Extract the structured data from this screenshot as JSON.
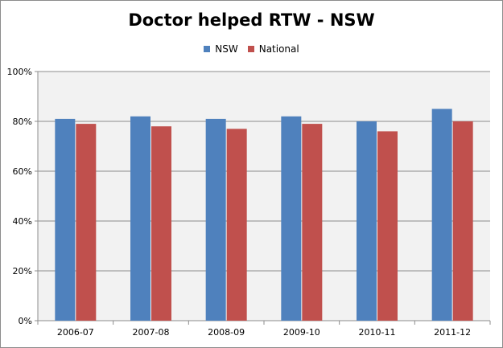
{
  "chart_data": {
    "type": "bar",
    "title": "Doctor helped RTW - NSW",
    "categories": [
      "2006-07",
      "2007-08",
      "2008-09",
      "2009-10",
      "2010-11",
      "2011-12"
    ],
    "series": [
      {
        "name": "NSW",
        "color": "#4f81bd",
        "values": [
          81,
          82,
          81,
          82,
          80,
          85
        ]
      },
      {
        "name": "National",
        "color": "#c0504d",
        "values": [
          79,
          78,
          77,
          79,
          76,
          80
        ]
      }
    ],
    "ylim": [
      0,
      100
    ],
    "yticks": [
      {
        "value": 0,
        "label": "0%"
      },
      {
        "value": 20,
        "label": "20%"
      },
      {
        "value": 40,
        "label": "40%"
      },
      {
        "value": 60,
        "label": "60%"
      },
      {
        "value": 80,
        "label": "80%"
      },
      {
        "value": 100,
        "label": "100%"
      }
    ],
    "grid": true,
    "legend_position": "top",
    "plot_background": "#f2f2f2"
  }
}
